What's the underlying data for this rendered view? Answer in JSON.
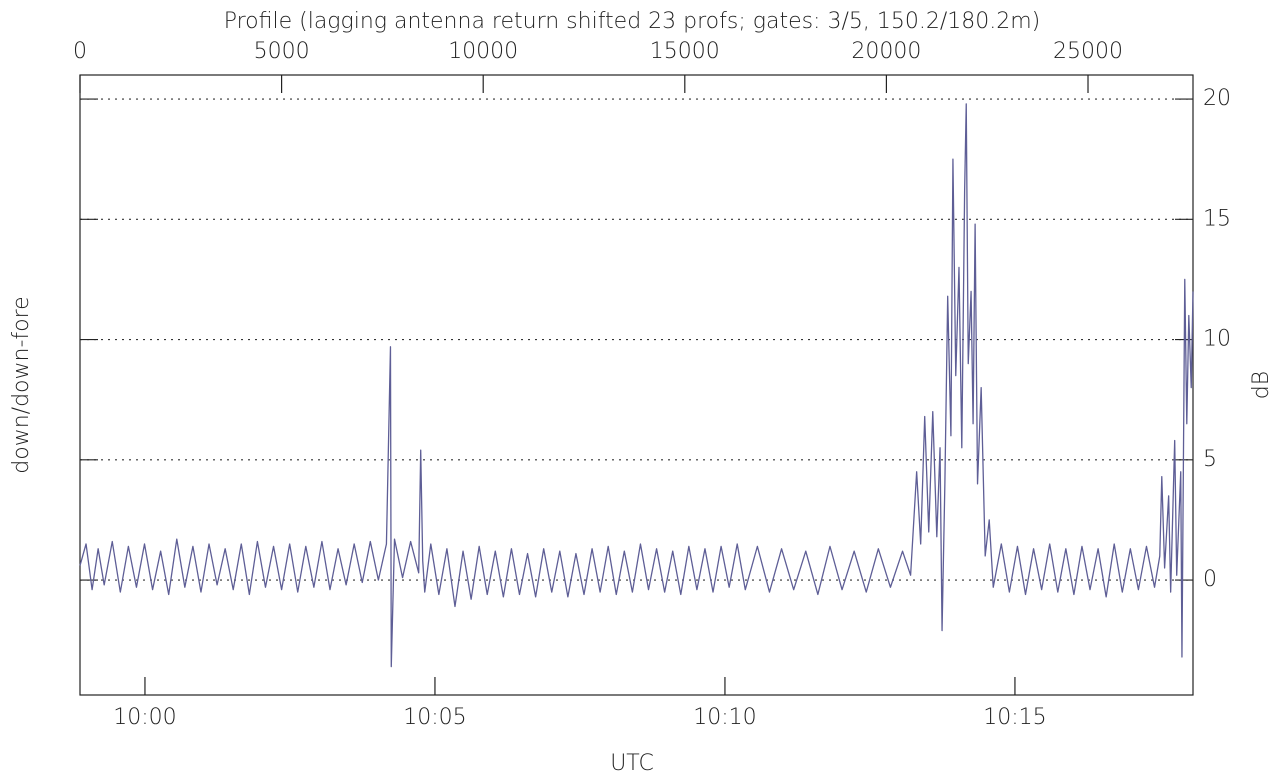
{
  "chart_data": {
    "type": "line",
    "title": "Profile (lagging antenna return shifted 23 profs; gates: 3/5, 150.2/180.2m)",
    "xlabel": "UTC",
    "ylabel": "down/down-fore",
    "y2label": "dB",
    "color": "#5e5e96",
    "grid": true,
    "xlim": [
      0,
      27604
    ],
    "xticks": [
      0,
      5000,
      10000,
      15000,
      20000,
      25000
    ],
    "x2lim": [
      -1.12,
      18.07
    ],
    "x2ticks": [
      {
        "value": 0,
        "label": "10:00"
      },
      {
        "value": 5,
        "label": "10:05"
      },
      {
        "value": 10,
        "label": "10:10"
      },
      {
        "value": 15,
        "label": "10:15"
      }
    ],
    "ylim": [
      -4.78,
      21.0
    ],
    "yticks": [
      0,
      5,
      10,
      15,
      20
    ],
    "x": [
      0,
      150,
      300,
      450,
      600,
      800,
      1000,
      1200,
      1400,
      1600,
      1800,
      2000,
      2200,
      2400,
      2600,
      2800,
      3000,
      3200,
      3400,
      3600,
      3800,
      4000,
      4200,
      4400,
      4600,
      4800,
      5000,
      5200,
      5400,
      5600,
      5800,
      6000,
      6200,
      6400,
      6600,
      6800,
      7000,
      7200,
      7400,
      7600,
      7700,
      7720,
      7800,
      8000,
      8200,
      8400,
      8450,
      8500,
      8550,
      8700,
      8900,
      9100,
      9300,
      9500,
      9700,
      9900,
      10100,
      10300,
      10500,
      10700,
      10900,
      11100,
      11300,
      11500,
      11700,
      11900,
      12100,
      12300,
      12500,
      12700,
      12900,
      13100,
      13300,
      13500,
      13700,
      13900,
      14100,
      14300,
      14500,
      14700,
      14900,
      15100,
      15300,
      15500,
      15700,
      15900,
      16100,
      16300,
      16500,
      16800,
      17100,
      17400,
      17700,
      18000,
      18300,
      18600,
      18900,
      19200,
      19500,
      19800,
      20100,
      20400,
      20600,
      20750,
      20850,
      20950,
      21050,
      21150,
      21250,
      21330,
      21380,
      21450,
      21520,
      21600,
      21650,
      21720,
      21800,
      21870,
      21940,
      21980,
      22030,
      22100,
      22150,
      22200,
      22260,
      22350,
      22450,
      22550,
      22650,
      22850,
      23050,
      23250,
      23450,
      23650,
      23850,
      24050,
      24250,
      24450,
      24650,
      24850,
      25050,
      25250,
      25450,
      25650,
      25850,
      26050,
      26250,
      26450,
      26650,
      26780,
      26830,
      26900,
      27000,
      27050,
      27150,
      27200,
      27300,
      27330,
      27400,
      27450,
      27500,
      27560,
      27604
    ],
    "values": [
      0.6,
      1.5,
      -0.4,
      1.3,
      -0.2,
      1.6,
      -0.5,
      1.4,
      -0.3,
      1.5,
      -0.4,
      1.2,
      -0.6,
      1.7,
      -0.3,
      1.4,
      -0.5,
      1.5,
      -0.2,
      1.3,
      -0.4,
      1.5,
      -0.6,
      1.6,
      -0.3,
      1.4,
      -0.4,
      1.5,
      -0.5,
      1.4,
      -0.3,
      1.6,
      -0.4,
      1.3,
      -0.2,
      1.5,
      -0.1,
      1.6,
      0.0,
      1.5,
      9.7,
      -3.6,
      1.7,
      0.1,
      1.6,
      0.3,
      5.4,
      0.8,
      -0.5,
      1.5,
      -0.6,
      1.3,
      -1.1,
      1.2,
      -0.8,
      1.4,
      -0.6,
      1.2,
      -0.7,
      1.3,
      -0.6,
      1.1,
      -0.7,
      1.3,
      -0.5,
      1.2,
      -0.7,
      1.1,
      -0.6,
      1.3,
      -0.5,
      1.4,
      -0.6,
      1.2,
      -0.5,
      1.5,
      -0.4,
      1.3,
      -0.5,
      1.2,
      -0.6,
      1.4,
      -0.4,
      1.3,
      -0.5,
      1.4,
      -0.3,
      1.5,
      -0.4,
      1.4,
      -0.5,
      1.3,
      -0.4,
      1.2,
      -0.6,
      1.4,
      -0.4,
      1.2,
      -0.5,
      1.3,
      -0.3,
      1.2,
      0.2,
      4.5,
      1.5,
      6.8,
      2.0,
      7.0,
      1.8,
      5.5,
      -2.1,
      4.0,
      11.8,
      6.0,
      17.5,
      8.5,
      13.0,
      5.5,
      16.2,
      19.8,
      9.0,
      12.0,
      6.5,
      14.8,
      4.0,
      8.0,
      1.0,
      2.5,
      -0.3,
      1.5,
      -0.5,
      1.4,
      -0.6,
      1.3,
      -0.4,
      1.5,
      -0.5,
      1.3,
      -0.6,
      1.4,
      -0.4,
      1.3,
      -0.7,
      1.5,
      -0.5,
      1.3,
      -0.4,
      1.4,
      -0.3,
      1.0,
      4.3,
      0.5,
      3.5,
      -0.5,
      5.8,
      0.2,
      4.5,
      -3.2,
      12.5,
      6.5,
      11.0,
      8.0,
      12.0
    ]
  }
}
